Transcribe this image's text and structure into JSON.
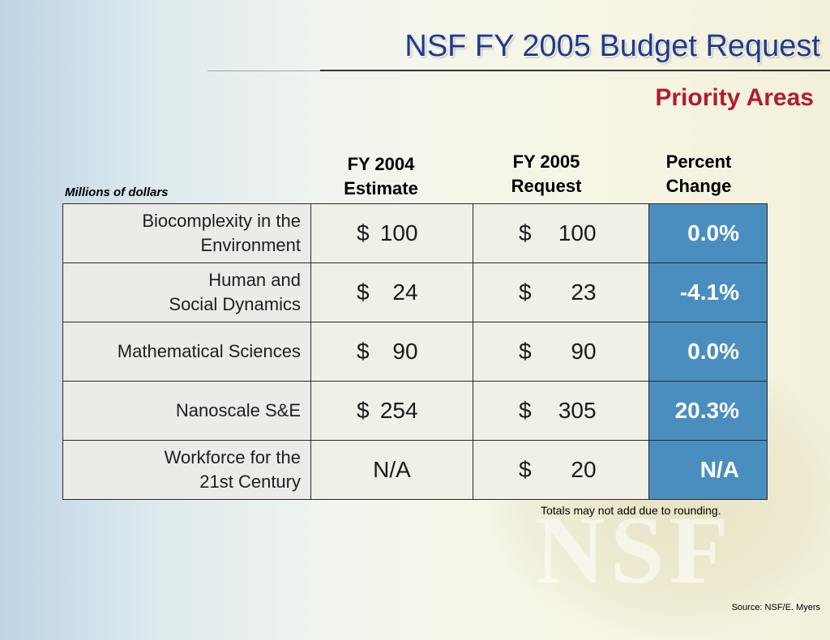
{
  "slide": {
    "title": "NSF FY 2005 Budget Request",
    "subtitle": "Priority Areas",
    "units_label": "Millions of dollars",
    "footnote": "Totals may not add due to rounding.",
    "source": "Source: NSF/E. Myers",
    "watermark": "NSF"
  },
  "table": {
    "headers": {
      "fy2004": [
        "FY 2004",
        "Estimate"
      ],
      "fy2005": [
        "FY 2005",
        "Request"
      ],
      "pct": [
        "Percent",
        "Change"
      ]
    },
    "rows": [
      {
        "area": [
          "Biocomplexity in the",
          "Environment"
        ],
        "fy2004_cur": "$",
        "fy2004": "100",
        "fy2005_cur": "$",
        "fy2005": "100",
        "pct": "0.0%"
      },
      {
        "area": [
          "Human and",
          "Social Dynamics"
        ],
        "fy2004_cur": "$",
        "fy2004": "24",
        "fy2005_cur": "$",
        "fy2005": "23",
        "pct": "-4.1%"
      },
      {
        "area": [
          "Mathematical Sciences"
        ],
        "fy2004_cur": "$",
        "fy2004": "90",
        "fy2005_cur": "$",
        "fy2005": "90",
        "pct": "0.0%"
      },
      {
        "area": [
          "Nanoscale S&E"
        ],
        "fy2004_cur": "$",
        "fy2004": "254",
        "fy2005_cur": "$",
        "fy2005": "305",
        "pct": "20.3%"
      },
      {
        "area": [
          "Workforce for the",
          "21st Century"
        ],
        "fy2004_na": "N/A",
        "fy2005_cur": "$",
        "fy2005": "20",
        "pct": "N/A"
      }
    ]
  },
  "colors": {
    "title": "#1f3a8c",
    "subtitle": "#b01c2e",
    "pct_cell": "#4a8ebf"
  }
}
